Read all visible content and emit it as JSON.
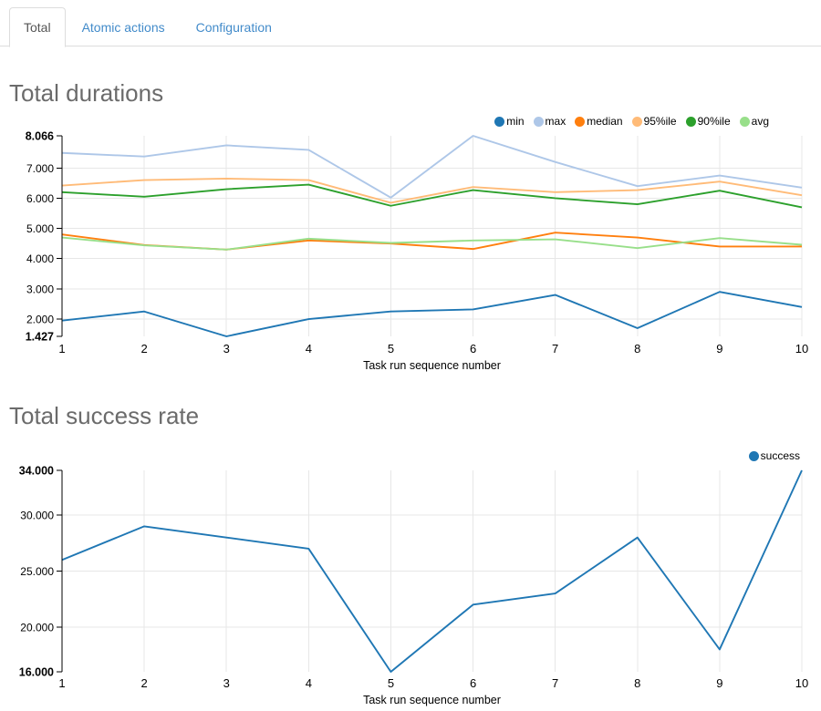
{
  "tabs": {
    "items": [
      {
        "label": "Total",
        "active": true
      },
      {
        "label": "Atomic actions",
        "active": false
      },
      {
        "label": "Configuration",
        "active": false
      }
    ]
  },
  "sections": [
    {
      "title": "Total durations"
    },
    {
      "title": "Total success rate"
    }
  ],
  "palette": {
    "grid": "#e7e7e7",
    "axis": "#000000",
    "tab_link": "#428bca",
    "active_tab_text": "#555555",
    "heading": "#6b6b6b"
  },
  "chart_data": [
    {
      "type": "line",
      "title": "Total durations",
      "xlabel": "Task run sequence number",
      "x": [
        1,
        2,
        3,
        4,
        5,
        6,
        7,
        8,
        9,
        10
      ],
      "ylim": [
        1.427,
        8.066
      ],
      "ytick_values": [
        8.066,
        7.0,
        6.0,
        5.0,
        4.0,
        3.0,
        2.0,
        1.427
      ],
      "ytick_labels": [
        "8.066",
        "7.000",
        "6.000",
        "5.000",
        "4.000",
        "3.000",
        "2.000",
        "1.427"
      ],
      "legend_position": "top-right",
      "grid": true,
      "series": [
        {
          "name": "min",
          "color": "#1f77b4",
          "values": [
            1.95,
            2.25,
            1.427,
            2.0,
            2.25,
            2.32,
            2.8,
            1.7,
            2.9,
            2.4
          ]
        },
        {
          "name": "max",
          "color": "#aec7e8",
          "values": [
            7.5,
            7.38,
            7.75,
            7.6,
            6.02,
            8.066,
            7.2,
            6.4,
            6.75,
            6.35
          ]
        },
        {
          "name": "median",
          "color": "#ff7f0e",
          "values": [
            4.8,
            4.45,
            4.3,
            4.6,
            4.5,
            4.32,
            4.86,
            4.7,
            4.4,
            4.4
          ]
        },
        {
          "name": "95%ile",
          "color": "#ffbb78",
          "values": [
            6.42,
            6.6,
            6.65,
            6.6,
            5.85,
            6.37,
            6.2,
            6.27,
            6.55,
            6.1
          ]
        },
        {
          "name": "90%ile",
          "color": "#2ca02c",
          "values": [
            6.2,
            6.05,
            6.3,
            6.45,
            5.75,
            6.27,
            6.0,
            5.8,
            6.25,
            5.7
          ]
        },
        {
          "name": "avg",
          "color": "#98df8a",
          "values": [
            4.7,
            4.44,
            4.3,
            4.66,
            4.52,
            4.6,
            4.64,
            4.35,
            4.68,
            4.46
          ]
        }
      ]
    },
    {
      "type": "line",
      "title": "Total success rate",
      "xlabel": "Task run sequence number",
      "x": [
        1,
        2,
        3,
        4,
        5,
        6,
        7,
        8,
        9,
        10
      ],
      "ylim": [
        16.0,
        34.0
      ],
      "ytick_values": [
        34.0,
        30.0,
        25.0,
        20.0,
        16.0
      ],
      "ytick_labels": [
        "34.000",
        "30.000",
        "25.000",
        "20.000",
        "16.000"
      ],
      "legend_position": "top-right",
      "grid": true,
      "series": [
        {
          "name": "success",
          "color": "#1f77b4",
          "values": [
            26,
            29,
            28,
            27,
            16,
            22,
            23,
            28,
            18,
            34
          ]
        }
      ]
    }
  ]
}
